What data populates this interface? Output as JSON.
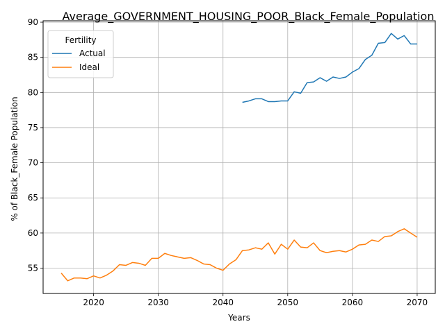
{
  "chart_data": {
    "type": "line",
    "title": "Average_GOVERNMENT_HOUSING_POOR_Black_Female_Population",
    "xlabel": "Years",
    "ylabel": "% of Black_Female Population",
    "xlim": [
      2012.2,
      2072.8
    ],
    "ylim": [
      51.4,
      90.2
    ],
    "xticks": [
      2020,
      2030,
      2040,
      2050,
      2060,
      2070
    ],
    "yticks": [
      55,
      60,
      65,
      70,
      75,
      80,
      85,
      90
    ],
    "grid": true,
    "legend": {
      "title": "Fertility",
      "placement": "top-left"
    },
    "series": [
      {
        "name": "Actual",
        "color": "#1f77b4",
        "x": [
          2043,
          2044,
          2045,
          2046,
          2047,
          2048,
          2049,
          2050,
          2051,
          2052,
          2053,
          2054,
          2055,
          2056,
          2057,
          2058,
          2059,
          2060,
          2061,
          2062,
          2063,
          2064,
          2065,
          2066,
          2067,
          2068,
          2069,
          2070
        ],
        "y": [
          78.6,
          78.8,
          79.1,
          79.1,
          78.7,
          78.7,
          78.8,
          78.8,
          80.1,
          79.9,
          81.4,
          81.5,
          82.1,
          81.6,
          82.2,
          82.0,
          82.2,
          82.9,
          83.4,
          84.7,
          85.3,
          87.0,
          87.1,
          88.4,
          87.6,
          88.1,
          86.9,
          86.9
        ]
      },
      {
        "name": "Ideal",
        "color": "#ff7f0e",
        "x": [
          2015,
          2016,
          2017,
          2018,
          2019,
          2020,
          2021,
          2022,
          2023,
          2024,
          2025,
          2026,
          2027,
          2028,
          2029,
          2030,
          2031,
          2032,
          2033,
          2034,
          2035,
          2036,
          2037,
          2038,
          2039,
          2040,
          2041,
          2042,
          2043,
          2044,
          2045,
          2046,
          2047,
          2048,
          2049,
          2050,
          2051,
          2052,
          2053,
          2054,
          2055,
          2056,
          2057,
          2058,
          2059,
          2060,
          2061,
          2062,
          2063,
          2064,
          2065,
          2066,
          2067,
          2068,
          2069,
          2070
        ],
        "y": [
          54.3,
          53.2,
          53.6,
          53.6,
          53.5,
          53.9,
          53.6,
          54.0,
          54.6,
          55.5,
          55.4,
          55.8,
          55.7,
          55.4,
          56.4,
          56.4,
          57.1,
          56.8,
          56.6,
          56.4,
          56.5,
          56.1,
          55.6,
          55.5,
          55.0,
          54.7,
          55.6,
          56.2,
          57.5,
          57.6,
          57.9,
          57.7,
          58.6,
          57.0,
          58.4,
          57.7,
          59.0,
          58.0,
          57.9,
          58.6,
          57.5,
          57.2,
          57.4,
          57.5,
          57.3,
          57.7,
          58.3,
          58.4,
          59.0,
          58.8,
          59.5,
          59.6,
          60.2,
          60.6,
          60.0,
          59.4
        ]
      }
    ]
  }
}
